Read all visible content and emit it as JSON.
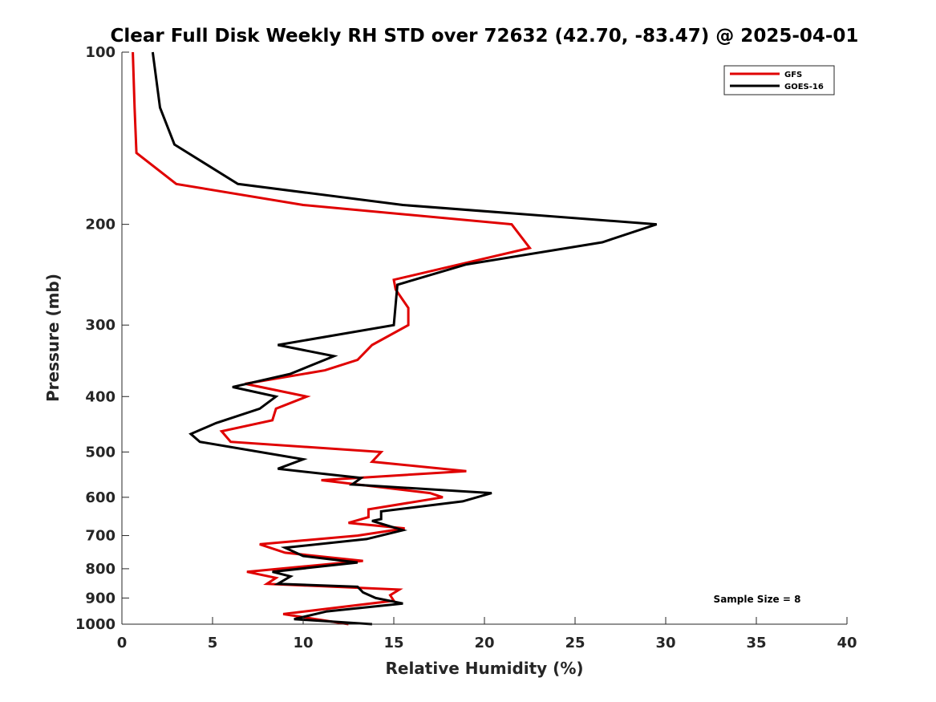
{
  "chart_data": {
    "type": "line",
    "title": "Clear Full Disk Weekly RH STD over 72632 (42.70, -83.47) @ 2025-04-01",
    "xlabel": "Relative Humidity (%)",
    "ylabel": "Pressure (mb)",
    "xlim": [
      0,
      40
    ],
    "ylim": [
      100,
      1000
    ],
    "yscale": "log",
    "y_reversed": true,
    "xticks": [
      0,
      5,
      10,
      15,
      20,
      25,
      30,
      35,
      40
    ],
    "yticks": [
      100,
      200,
      300,
      400,
      500,
      600,
      700,
      800,
      900,
      1000
    ],
    "grid": false,
    "legend_position": "top-right",
    "annotation": "Sample Size = 8",
    "series": [
      {
        "name": "GFS",
        "color": "#e00000",
        "points": [
          [
            0.6,
            100
          ],
          [
            0.7,
            125
          ],
          [
            0.8,
            150
          ],
          [
            3.0,
            170
          ],
          [
            10.0,
            185
          ],
          [
            21.5,
            200
          ],
          [
            22.5,
            220
          ],
          [
            15.0,
            250
          ],
          [
            15.1,
            260
          ],
          [
            15.8,
            280
          ],
          [
            15.8,
            300
          ],
          [
            13.8,
            325
          ],
          [
            13.0,
            345
          ],
          [
            11.2,
            360
          ],
          [
            6.8,
            380
          ],
          [
            10.2,
            400
          ],
          [
            8.5,
            420
          ],
          [
            8.3,
            440
          ],
          [
            5.5,
            460
          ],
          [
            6.0,
            480
          ],
          [
            14.3,
            500
          ],
          [
            13.8,
            520
          ],
          [
            19.0,
            540
          ],
          [
            11.0,
            560
          ],
          [
            17.0,
            590
          ],
          [
            17.7,
            600
          ],
          [
            13.6,
            630
          ],
          [
            13.6,
            650
          ],
          [
            12.5,
            665
          ],
          [
            15.6,
            680
          ],
          [
            13.0,
            700
          ],
          [
            7.6,
            725
          ],
          [
            9.0,
            750
          ],
          [
            13.3,
            775
          ],
          [
            6.9,
            810
          ],
          [
            8.5,
            830
          ],
          [
            8.0,
            850
          ],
          [
            15.3,
            870
          ],
          [
            14.8,
            890
          ],
          [
            15.0,
            910
          ],
          [
            8.9,
            960
          ],
          [
            12.5,
            1000
          ]
        ]
      },
      {
        "name": "GOES-16",
        "color": "#000000",
        "points": [
          [
            1.7,
            100
          ],
          [
            2.1,
            125
          ],
          [
            2.9,
            145
          ],
          [
            6.4,
            170
          ],
          [
            15.5,
            185
          ],
          [
            29.5,
            200
          ],
          [
            26.5,
            215
          ],
          [
            19.0,
            235
          ],
          [
            15.2,
            255
          ],
          [
            15.0,
            300
          ],
          [
            8.6,
            325
          ],
          [
            11.7,
            340
          ],
          [
            9.3,
            365
          ],
          [
            6.1,
            385
          ],
          [
            8.5,
            400
          ],
          [
            7.6,
            420
          ],
          [
            5.2,
            445
          ],
          [
            3.8,
            465
          ],
          [
            4.3,
            480
          ],
          [
            10.0,
            515
          ],
          [
            8.6,
            535
          ],
          [
            13.2,
            555
          ],
          [
            12.7,
            570
          ],
          [
            20.4,
            590
          ],
          [
            18.8,
            610
          ],
          [
            14.3,
            635
          ],
          [
            14.3,
            655
          ],
          [
            13.8,
            660
          ],
          [
            15.5,
            685
          ],
          [
            13.5,
            710
          ],
          [
            9.0,
            735
          ],
          [
            10.0,
            760
          ],
          [
            13.0,
            780
          ],
          [
            8.3,
            810
          ],
          [
            9.3,
            825
          ],
          [
            8.6,
            850
          ],
          [
            13.0,
            860
          ],
          [
            13.3,
            880
          ],
          [
            14.0,
            900
          ],
          [
            15.5,
            920
          ],
          [
            11.3,
            950
          ],
          [
            9.5,
            980
          ],
          [
            13.8,
            1000
          ]
        ]
      }
    ]
  }
}
